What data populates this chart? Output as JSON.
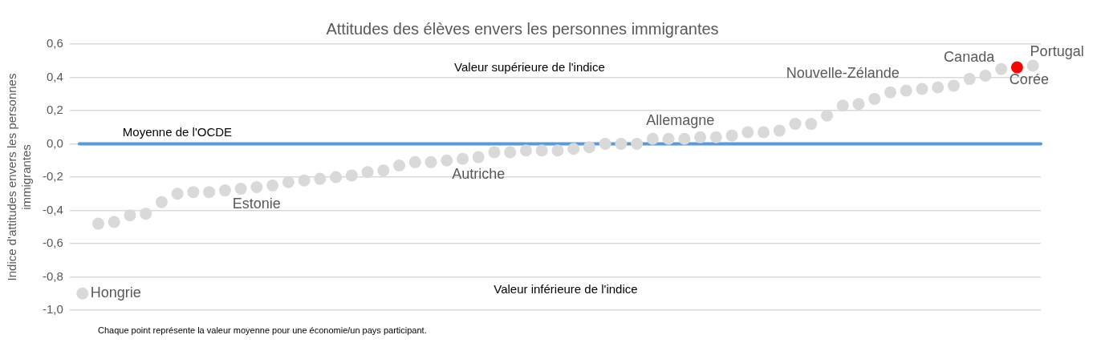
{
  "chart_data": {
    "type": "scatter",
    "title": "Attitudes des élèves envers les personnes immigrantes",
    "ylabel": "Indice d'attitudes envers les personnes immigrantes",
    "categories": [
      null,
      null,
      null,
      null,
      null,
      null,
      null,
      null,
      null,
      null,
      null,
      null,
      null,
      null,
      null,
      null,
      null,
      null,
      null,
      null,
      null,
      null,
      null,
      null,
      null,
      null,
      null,
      null,
      null,
      null,
      null,
      null,
      null,
      null,
      null,
      null,
      null,
      null,
      null,
      null,
      null,
      null,
      null,
      null,
      null,
      null,
      null,
      null,
      null,
      null,
      null,
      null,
      null,
      null,
      null,
      null,
      null,
      null,
      null,
      null,
      null
    ],
    "series": [
      {
        "values": [
          -0.9,
          -0.48,
          -0.47,
          -0.43,
          -0.42,
          -0.35,
          -0.3,
          -0.29,
          -0.29,
          -0.28,
          -0.27,
          -0.26,
          -0.25,
          -0.23,
          -0.22,
          -0.21,
          -0.2,
          -0.19,
          -0.17,
          -0.16,
          -0.13,
          -0.11,
          -0.11,
          -0.1,
          -0.09,
          -0.08,
          -0.05,
          -0.05,
          -0.04,
          -0.04,
          -0.04,
          -0.03,
          -0.02,
          0.0,
          0.0,
          0.0,
          0.03,
          0.03,
          0.03,
          0.04,
          0.04,
          0.05,
          0.07,
          0.07,
          0.08,
          0.12,
          0.12,
          0.17,
          0.23,
          0.24,
          0.27,
          0.31,
          0.32,
          0.33,
          0.34,
          0.35,
          0.39,
          0.41,
          0.45,
          0.46,
          0.47
        ],
        "colors": [
          "#d9d9d9",
          "#d9d9d9",
          "#d9d9d9",
          "#d9d9d9",
          "#d9d9d9",
          "#d9d9d9",
          "#d9d9d9",
          "#d9d9d9",
          "#d9d9d9",
          "#d9d9d9",
          "#d9d9d9",
          "#d9d9d9",
          "#d9d9d9",
          "#d9d9d9",
          "#d9d9d9",
          "#d9d9d9",
          "#d9d9d9",
          "#d9d9d9",
          "#d9d9d9",
          "#d9d9d9",
          "#d9d9d9",
          "#d9d9d9",
          "#d9d9d9",
          "#d9d9d9",
          "#d9d9d9",
          "#d9d9d9",
          "#d9d9d9",
          "#d9d9d9",
          "#d9d9d9",
          "#d9d9d9",
          "#d9d9d9",
          "#d9d9d9",
          "#d9d9d9",
          "#d9d9d9",
          "#d9d9d9",
          "#d9d9d9",
          "#d9d9d9",
          "#d9d9d9",
          "#d9d9d9",
          "#d9d9d9",
          "#d9d9d9",
          "#d9d9d9",
          "#d9d9d9",
          "#d9d9d9",
          "#d9d9d9",
          "#d9d9d9",
          "#d9d9d9",
          "#d9d9d9",
          "#d9d9d9",
          "#d9d9d9",
          "#d9d9d9",
          "#d9d9d9",
          "#d9d9d9",
          "#d9d9d9",
          "#d9d9d9",
          "#d9d9d9",
          "#d9d9d9",
          "#d9d9d9",
          "#d9d9d9",
          "#ff0000",
          "#d9d9d9"
        ],
        "value_labels": [
          "Hongrie",
          null,
          null,
          null,
          null,
          null,
          null,
          null,
          null,
          null,
          null,
          "Estonie",
          null,
          null,
          null,
          null,
          null,
          null,
          null,
          null,
          null,
          null,
          null,
          null,
          null,
          "Autriche",
          null,
          null,
          null,
          null,
          null,
          null,
          null,
          null,
          null,
          null,
          null,
          null,
          "Allemagne",
          null,
          null,
          null,
          null,
          null,
          null,
          null,
          null,
          null,
          "Nouvelle-Zélande",
          null,
          null,
          null,
          null,
          null,
          null,
          null,
          null,
          null,
          "Canada",
          "Corée",
          "Portugal"
        ]
      }
    ],
    "ylim": [
      -1,
      0.6
    ],
    "yticks": [
      {
        "value": -1,
        "label": "-1,0"
      },
      {
        "value": -0.8,
        "label": "-0,8"
      },
      {
        "value": -0.6,
        "label": "-0,6"
      },
      {
        "value": -0.4,
        "label": "-0,4"
      },
      {
        "value": -0.2,
        "label": "-0,2"
      },
      {
        "value": 0,
        "label": "0,0"
      },
      {
        "value": 0.2,
        "label": "0,2"
      },
      {
        "value": 0.4,
        "label": "0,4"
      },
      {
        "value": 0.6,
        "label": "0,6"
      }
    ],
    "grid": "y",
    "legend": false,
    "marker": "circle",
    "ref_lines": [
      {
        "axis": "y",
        "value": 0,
        "label": "Moyenne de l'OCDE",
        "color": "#5b9bd5"
      }
    ],
    "annotations": [
      "Valeur supérieure de l'indice",
      "Valeur inférieure de l'indice",
      "Chaque point représente la valeur moyenne pour une économie/un pays participant."
    ]
  }
}
